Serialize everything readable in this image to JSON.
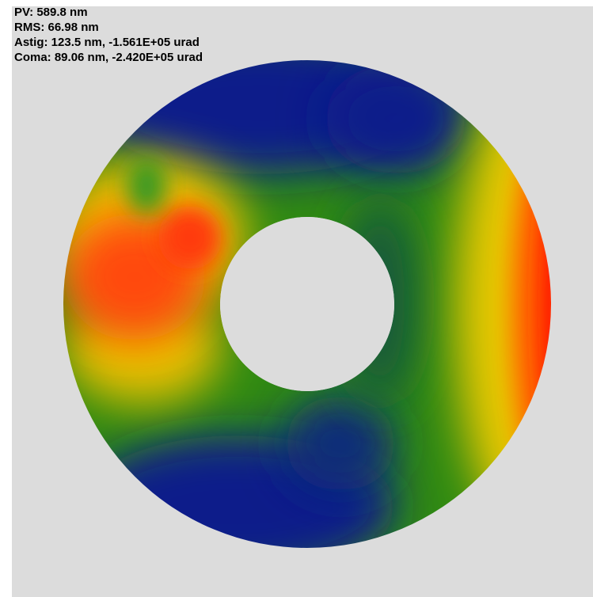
{
  "readout": {
    "pv": "PV: 589.8 nm",
    "rms": "RMS: 66.98 nm",
    "astig": "Astig: 123.5 nm, -1.561E+05 urad",
    "coma": "Coma: 89.06 nm, -2.420E+05 urad"
  }
}
